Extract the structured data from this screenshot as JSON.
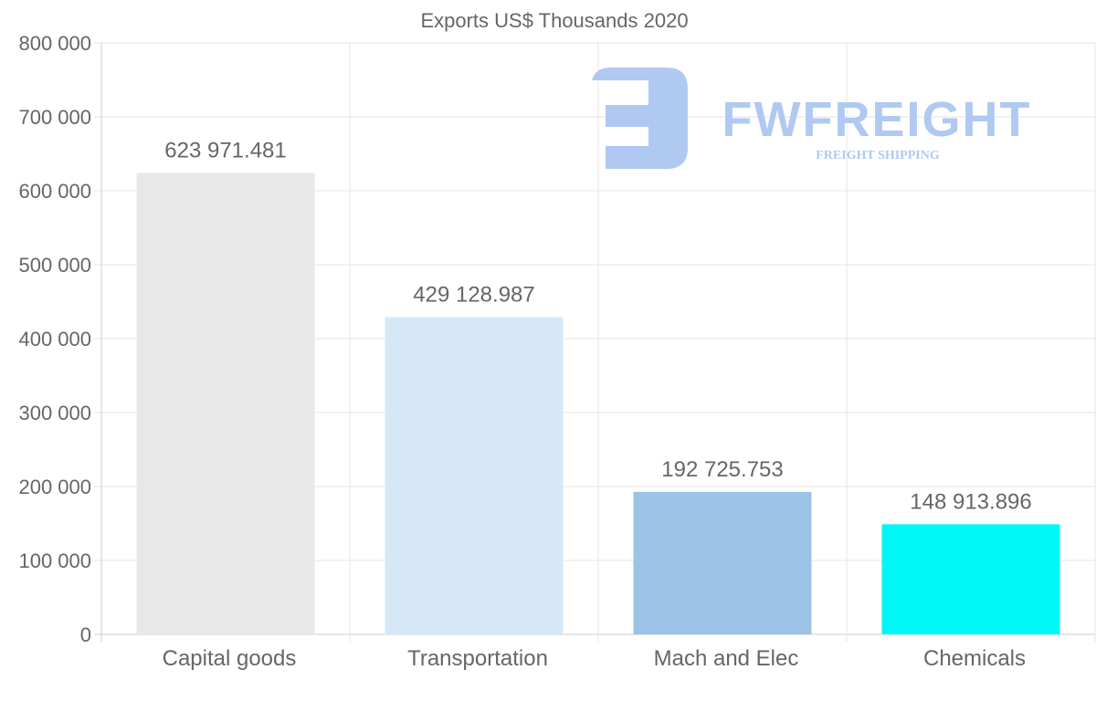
{
  "chart_data": {
    "type": "bar",
    "title": "Exports US$ Thousands 2020",
    "xlabel": "",
    "ylabel": "",
    "ylim": [
      0,
      800000
    ],
    "yticks": [
      0,
      100000,
      200000,
      300000,
      400000,
      500000,
      600000,
      700000,
      800000
    ],
    "ytick_labels": [
      "0",
      "100 000",
      "200 000",
      "300 000",
      "400 000",
      "500 000",
      "600 000",
      "700 000",
      "800 000"
    ],
    "categories": [
      "Capital goods",
      "Transportation",
      "Mach and Elec",
      "Chemicals"
    ],
    "values": [
      623971.481,
      429128.987,
      192725.753,
      148913.896
    ],
    "data_labels": [
      "623 971.481",
      "429 128.987",
      "192 725.753",
      "148 913.896"
    ],
    "colors": [
      "#e8e8e8",
      "#d6e8f8",
      "#9bc3e6",
      "#00f7f7"
    ],
    "grid": true,
    "legend": "none"
  },
  "watermark": {
    "brand": "FWFREIGHT",
    "tagline": "FREIGHT SHIPPING",
    "color": "#b0c9f2"
  }
}
